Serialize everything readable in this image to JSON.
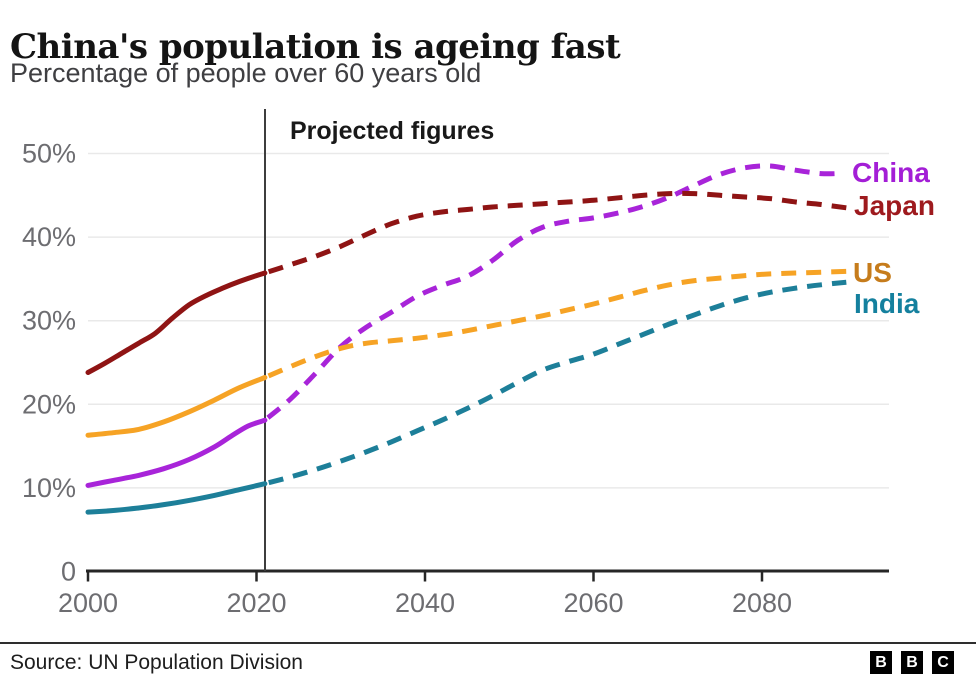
{
  "header": {
    "title": "China's population is ageing fast",
    "subtitle": "Percentage of people over 60 years old"
  },
  "annotation": {
    "label": "Projected figures"
  },
  "footer": {
    "source": "Source: UN Population Division",
    "logo_blocks": [
      "B",
      "B",
      "C"
    ]
  },
  "colors": {
    "grid": "#e9e9e9",
    "axis": "#262626",
    "tick_label": "#6d6d71",
    "projection_line": "#3d3d3d",
    "title_text": "#141414",
    "subtitle_text": "#3f3f42"
  },
  "chart_data": {
    "type": "line",
    "title": "China's population is ageing fast",
    "subtitle": "Percentage of people over 60 years old",
    "annotation": "Projected figures",
    "projection_start_year": 2021,
    "xlim": [
      2000,
      2095
    ],
    "ylim": [
      0,
      53
    ],
    "x_ticks": [
      2000,
      2020,
      2040,
      2060,
      2080
    ],
    "x_tick_labels": [
      "2000",
      "2020",
      "2040",
      "2060",
      "2080"
    ],
    "y_ticks": [
      0,
      10,
      20,
      30,
      40,
      50
    ],
    "y_tick_labels": [
      "0",
      "10%",
      "20%",
      "30%",
      "40%",
      "50%"
    ],
    "grid": "horizontal-only",
    "legend_position": "right-end-of-lines",
    "series": [
      {
        "name": "China",
        "color": "#a824d9",
        "label_color": "#a31ed6",
        "solid": [
          [
            2000,
            10.3
          ],
          [
            2003,
            10.9
          ],
          [
            2006,
            11.5
          ],
          [
            2009,
            12.3
          ],
          [
            2012,
            13.4
          ],
          [
            2015,
            14.9
          ],
          [
            2017,
            16.2
          ],
          [
            2019,
            17.4
          ],
          [
            2021,
            18.1
          ]
        ],
        "projected": [
          [
            2021,
            18.1
          ],
          [
            2024,
            20.6
          ],
          [
            2027,
            23.7
          ],
          [
            2030,
            26.9
          ],
          [
            2033,
            29.2
          ],
          [
            2036,
            31.0
          ],
          [
            2039,
            32.9
          ],
          [
            2042,
            34.2
          ],
          [
            2045,
            35.3
          ],
          [
            2048,
            37.2
          ],
          [
            2051,
            39.6
          ],
          [
            2054,
            41.2
          ],
          [
            2057,
            41.9
          ],
          [
            2060,
            42.3
          ],
          [
            2063,
            42.9
          ],
          [
            2066,
            43.7
          ],
          [
            2069,
            44.8
          ],
          [
            2072,
            46.2
          ],
          [
            2075,
            47.5
          ],
          [
            2078,
            48.3
          ],
          [
            2081,
            48.5
          ],
          [
            2084,
            48.0
          ],
          [
            2087,
            47.6
          ],
          [
            2089,
            47.6
          ]
        ]
      },
      {
        "name": "Japan",
        "color": "#8f1414",
        "label_color": "#9e1a1e",
        "solid": [
          [
            2000,
            23.8
          ],
          [
            2002,
            24.9
          ],
          [
            2004,
            26.1
          ],
          [
            2006,
            27.3
          ],
          [
            2008,
            28.5
          ],
          [
            2010,
            30.3
          ],
          [
            2012,
            31.9
          ],
          [
            2014,
            33.0
          ],
          [
            2016,
            33.9
          ],
          [
            2018,
            34.7
          ],
          [
            2020,
            35.4
          ],
          [
            2021,
            35.7
          ]
        ],
        "projected": [
          [
            2021,
            35.7
          ],
          [
            2024,
            36.7
          ],
          [
            2027,
            37.7
          ],
          [
            2030,
            38.9
          ],
          [
            2033,
            40.3
          ],
          [
            2036,
            41.6
          ],
          [
            2039,
            42.5
          ],
          [
            2042,
            43.0
          ],
          [
            2045,
            43.3
          ],
          [
            2048,
            43.6
          ],
          [
            2051,
            43.8
          ],
          [
            2054,
            44.0
          ],
          [
            2057,
            44.2
          ],
          [
            2060,
            44.4
          ],
          [
            2063,
            44.7
          ],
          [
            2066,
            45.0
          ],
          [
            2069,
            45.2
          ],
          [
            2072,
            45.2
          ],
          [
            2075,
            45.0
          ],
          [
            2078,
            44.8
          ],
          [
            2081,
            44.6
          ],
          [
            2084,
            44.2
          ],
          [
            2087,
            43.9
          ],
          [
            2090,
            43.5
          ]
        ]
      },
      {
        "name": "US",
        "color": "#f6a325",
        "label_color": "#c67c1c",
        "solid": [
          [
            2000,
            16.3
          ],
          [
            2003,
            16.6
          ],
          [
            2006,
            17.0
          ],
          [
            2009,
            17.9
          ],
          [
            2012,
            19.1
          ],
          [
            2015,
            20.5
          ],
          [
            2018,
            22.0
          ],
          [
            2021,
            23.2
          ]
        ],
        "projected": [
          [
            2021,
            23.2
          ],
          [
            2024,
            24.5
          ],
          [
            2027,
            25.7
          ],
          [
            2030,
            26.7
          ],
          [
            2033,
            27.3
          ],
          [
            2036,
            27.6
          ],
          [
            2039,
            27.9
          ],
          [
            2042,
            28.3
          ],
          [
            2045,
            28.8
          ],
          [
            2048,
            29.4
          ],
          [
            2051,
            30.0
          ],
          [
            2054,
            30.6
          ],
          [
            2057,
            31.3
          ],
          [
            2060,
            32.0
          ],
          [
            2063,
            32.8
          ],
          [
            2066,
            33.6
          ],
          [
            2069,
            34.3
          ],
          [
            2072,
            34.8
          ],
          [
            2075,
            35.1
          ],
          [
            2078,
            35.4
          ],
          [
            2081,
            35.6
          ],
          [
            2084,
            35.7
          ],
          [
            2087,
            35.8
          ],
          [
            2090,
            35.9
          ]
        ]
      },
      {
        "name": "India",
        "color": "#1d7f99",
        "label_color": "#14809e",
        "solid": [
          [
            2000,
            7.1
          ],
          [
            2003,
            7.3
          ],
          [
            2006,
            7.6
          ],
          [
            2009,
            8.0
          ],
          [
            2012,
            8.5
          ],
          [
            2015,
            9.1
          ],
          [
            2018,
            9.8
          ],
          [
            2021,
            10.5
          ]
        ],
        "projected": [
          [
            2021,
            10.5
          ],
          [
            2024,
            11.3
          ],
          [
            2027,
            12.2
          ],
          [
            2030,
            13.2
          ],
          [
            2033,
            14.3
          ],
          [
            2036,
            15.5
          ],
          [
            2039,
            16.8
          ],
          [
            2042,
            18.1
          ],
          [
            2045,
            19.5
          ],
          [
            2048,
            21.0
          ],
          [
            2051,
            22.6
          ],
          [
            2054,
            24.1
          ],
          [
            2057,
            25.1
          ],
          [
            2060,
            26.0
          ],
          [
            2063,
            27.2
          ],
          [
            2066,
            28.4
          ],
          [
            2069,
            29.6
          ],
          [
            2072,
            30.7
          ],
          [
            2075,
            31.8
          ],
          [
            2078,
            32.7
          ],
          [
            2081,
            33.4
          ],
          [
            2084,
            33.9
          ],
          [
            2087,
            34.3
          ],
          [
            2090,
            34.6
          ]
        ]
      }
    ]
  }
}
